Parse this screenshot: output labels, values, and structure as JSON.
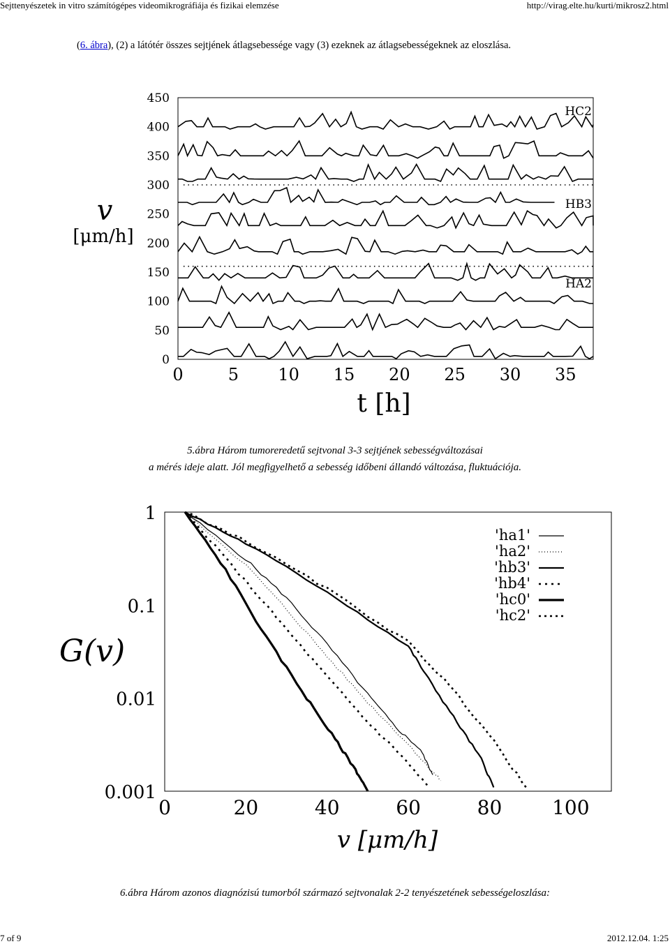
{
  "header": {
    "title": "Sejttenyészetek in vitro számítógépes videomikrográfiája és fizikai elemzése",
    "url": "http://virag.elte.hu/kurti/mikrosz2.html"
  },
  "intro": {
    "open": "(",
    "link_text": "6. ábra",
    "rest": "), (2) a látótér összes sejtjének átlagsebessége vagy (3) ezeknek az átlagsebességeknek az eloszlása."
  },
  "figure5": {
    "caption_line1": "5.ábra Három tumoreredetű sejtvonal 3-3 sejtjének sebességváltozásai",
    "caption_line2": "a mérés ideje alatt. Jól megfigyelhető a sebesség időbeni állandó változása, fluktuációja."
  },
  "figure6": {
    "caption": "6.ábra Három azonos diagnózisú tumorból származó sejtvonalak 2-2 tenyészetének sebességeloszlása:"
  },
  "footer": {
    "page": "7 of 9",
    "datetime": "2012.12.04. 1:25"
  },
  "chart_data": [
    {
      "type": "line",
      "xlabel": "t [h]",
      "ylabel": "v",
      "ylabel_unit": "[μm/h]",
      "xlim": [
        0,
        37.5
      ],
      "ylim": [
        0,
        450
      ],
      "xticks": [
        "0",
        "5",
        "10",
        "15",
        "20",
        "25",
        "30",
        "35"
      ],
      "yticks": [
        "0",
        "50",
        "100",
        "150",
        "200",
        "250",
        "300",
        "350",
        "400",
        "450"
      ],
      "group_labels": [
        "HC2",
        "HB3",
        "HA2"
      ],
      "series_baselines": [
        400,
        350,
        310,
        270,
        230,
        185,
        140,
        100,
        55,
        5
      ],
      "dotted_separators": [
        300,
        160
      ]
    },
    {
      "type": "line",
      "xlabel": "v [μm/h]",
      "ylabel": "G(v)",
      "xlim": [
        0,
        110
      ],
      "ylim": [
        0.001,
        1
      ],
      "yscale": "log",
      "xticks": [
        "0",
        "20",
        "40",
        "60",
        "80",
        "100"
      ],
      "yticks": [
        "1",
        "0.1",
        "0.01",
        "0.001"
      ],
      "series": [
        {
          "name": "'ha1'",
          "style": "solid-thin",
          "x": [
            5,
            20,
            30,
            40,
            50,
            57,
            63,
            66
          ],
          "y": [
            1,
            0.31,
            0.12,
            0.038,
            0.011,
            0.0048,
            0.0028,
            0.0015
          ]
        },
        {
          "name": "'ha2'",
          "style": "dotted-fine",
          "x": [
            5,
            20,
            30,
            40,
            50,
            60,
            65,
            68
          ],
          "y": [
            1,
            0.27,
            0.09,
            0.028,
            0.009,
            0.0032,
            0.0018,
            0.0013
          ]
        },
        {
          "name": "'hb3'",
          "style": "solid-medium",
          "x": [
            5,
            20,
            40,
            60,
            65,
            72,
            78,
            81
          ],
          "y": [
            1,
            0.46,
            0.14,
            0.036,
            0.016,
            0.0055,
            0.0022,
            0.0011
          ]
        },
        {
          "name": "'hb4'",
          "style": "dashed",
          "x": [
            5,
            20,
            30,
            40,
            50,
            58,
            65
          ],
          "y": [
            1,
            0.18,
            0.055,
            0.017,
            0.0055,
            0.0025,
            0.0011
          ]
        },
        {
          "name": "'hc0'",
          "style": "solid-thick",
          "x": [
            5,
            15,
            25,
            35,
            42,
            47,
            50
          ],
          "y": [
            1,
            0.24,
            0.045,
            0.01,
            0.0036,
            0.0017,
            0.001
          ]
        },
        {
          "name": "'hc2'",
          "style": "dash-dot",
          "x": [
            5,
            20,
            40,
            60,
            70,
            80,
            89
          ],
          "y": [
            1,
            0.49,
            0.15,
            0.04,
            0.014,
            0.004,
            0.0011
          ]
        }
      ]
    }
  ]
}
